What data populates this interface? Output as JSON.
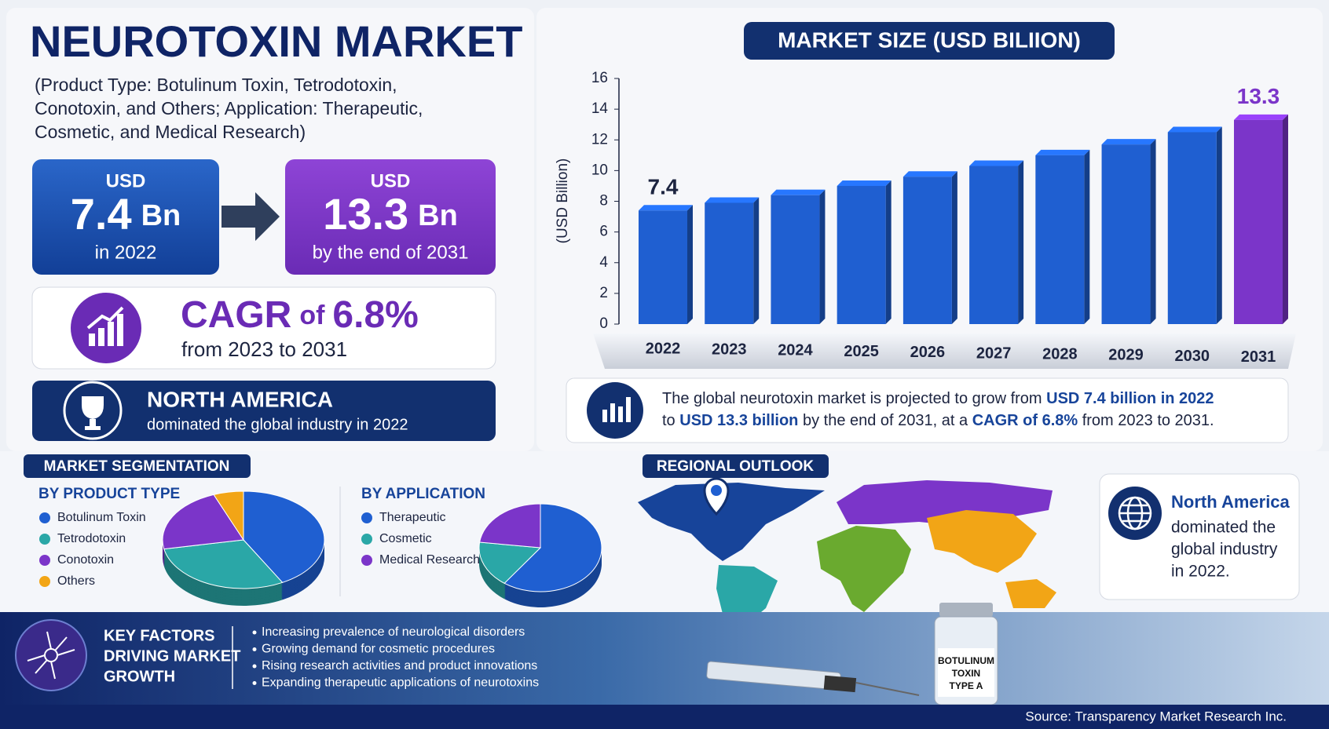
{
  "header": {
    "title": "NEUROTOXIN MARKET",
    "subtitle": [
      "(Product Type: Botulinum Toxin, Tetrodotoxin,",
      "Conotoxin, and Others; Application: Therapeutic,",
      "Cosmetic, and Medical Research)"
    ]
  },
  "kpis": {
    "start": {
      "prefix": "USD",
      "amount": "7.4",
      "unit": "Bn",
      "note": "in 2022"
    },
    "end": {
      "prefix": "USD",
      "amount": "13.3",
      "unit": "Bn",
      "note": "by the end of 2031"
    },
    "cagr": {
      "label": "CAGR",
      "of": "of",
      "value": "6.8%",
      "note": "from 2023 to 2031"
    },
    "region": {
      "title": "NORTH AMERICA",
      "note": "dominated the global industry in 2022"
    }
  },
  "summary": {
    "lines": [
      [
        {
          "text": "The global neurotoxin market is projected to grow from ",
          "bold": false
        },
        {
          "text": "USD 7.4 billion in 2022",
          "bold": true
        }
      ],
      [
        {
          "text": "to ",
          "bold": false
        },
        {
          "text": "USD 13.3 billion",
          "bold": true
        },
        {
          "text": " by the end of 2031, at a ",
          "bold": false
        },
        {
          "text": "CAGR of 6.8%",
          "bold": true
        },
        {
          "text": " from 2023 to 2031.",
          "bold": false
        }
      ]
    ]
  },
  "sections": {
    "segmentation": "MARKET SEGMENTATION",
    "regional": "REGIONAL OUTLOOK"
  },
  "regional_note": {
    "title": "North America",
    "text": [
      "dominated the",
      "global industry",
      "in 2022."
    ]
  },
  "key_factors": {
    "title": [
      "KEY FACTORS",
      "DRIVING MARKET",
      "GROWTH"
    ],
    "items": [
      "Increasing prevalence of neurological disorders",
      "Growing demand for cosmetic procedures",
      "Rising research activities and product innovations",
      "Expanding therapeutic applications of neurotoxins"
    ]
  },
  "vial_label": [
    "BOTULINUM",
    "TOXIN",
    "TYPE A"
  ],
  "source": "Source: Transparency Market Research Inc.",
  "chart_data": [
    {
      "type": "bar",
      "title": "MARKET SIZE (USD BILIION)",
      "y_label": "(USD Billion)",
      "categories": [
        "2022",
        "2023",
        "2024",
        "2025",
        "2026",
        "2027",
        "2028",
        "2029",
        "2030",
        "2031"
      ],
      "values": [
        7.4,
        7.9,
        8.4,
        9.0,
        9.6,
        10.3,
        11.0,
        11.7,
        12.5,
        13.3
      ],
      "value_labels": [
        "7.4",
        null,
        null,
        null,
        null,
        null,
        null,
        null,
        null,
        "13.3"
      ],
      "colors": [
        "#1f5fd1",
        "#1f5fd1",
        "#1f5fd1",
        "#1f5fd1",
        "#1f5fd1",
        "#1f5fd1",
        "#1f5fd1",
        "#1f5fd1",
        "#1f5fd1",
        "#7b35c9"
      ],
      "ylim": [
        0,
        16
      ],
      "yticks": [
        0,
        2,
        4,
        6,
        8,
        10,
        12,
        14,
        16
      ]
    },
    {
      "type": "pie",
      "title": "BY PRODUCT TYPE",
      "categories": [
        "Botulinum Toxin",
        "Tetrodotoxin",
        "Conotoxin",
        "Others"
      ],
      "values": [
        42,
        30,
        22,
        6
      ],
      "colors": [
        "#1f5fd1",
        "#2aa7a7",
        "#7b35c9",
        "#f2a516"
      ]
    },
    {
      "type": "pie",
      "title": "BY APPLICATION",
      "categories": [
        "Therapeutic",
        "Cosmetic",
        "Medical Research"
      ],
      "values": [
        60,
        17,
        23
      ],
      "colors": [
        "#1f5fd1",
        "#2aa7a7",
        "#7b35c9"
      ]
    }
  ]
}
